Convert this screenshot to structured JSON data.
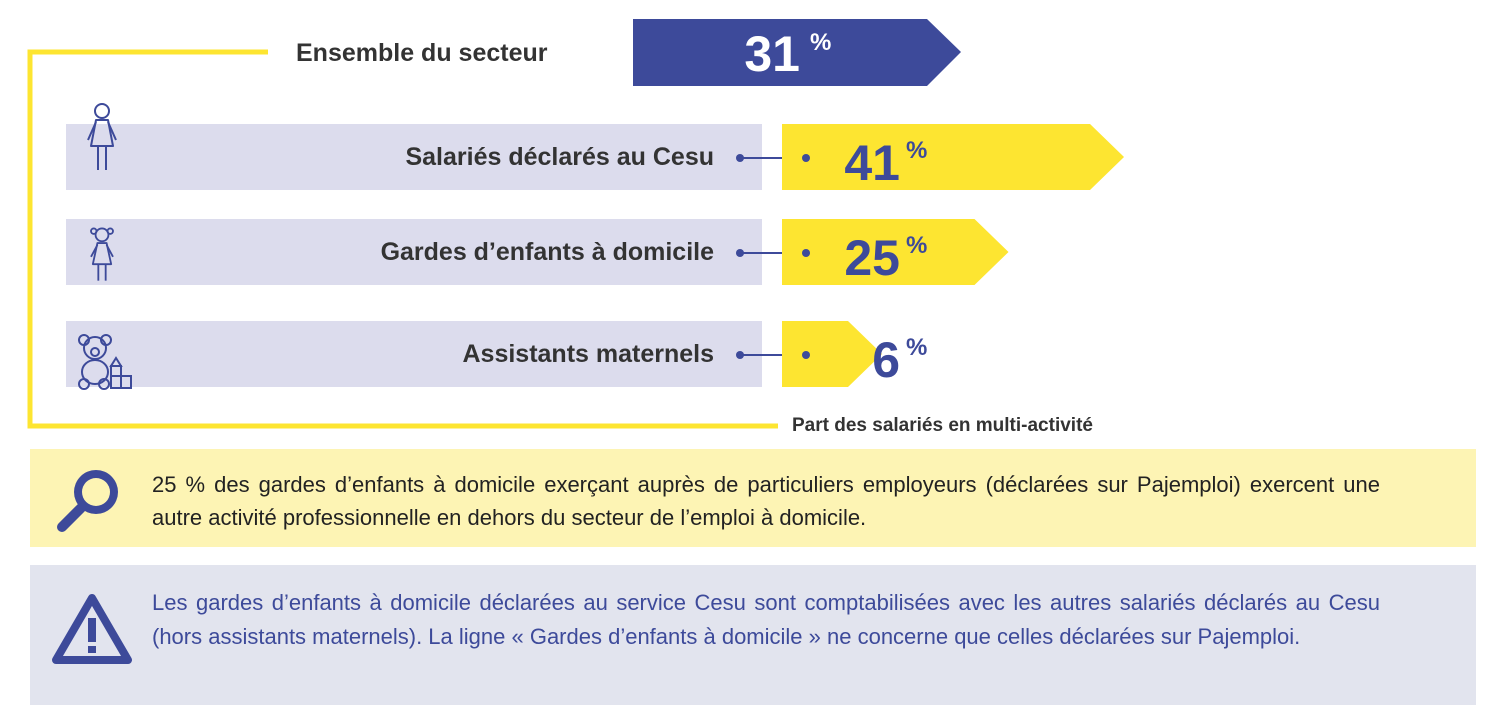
{
  "chart_data": {
    "type": "bar",
    "title": "",
    "total": {
      "label": "Ensemble du secteur",
      "value": 31,
      "unit": "%"
    },
    "categories": [
      "Salariés déclarés au Cesu",
      "Gardes d’enfants à domicile",
      "Assistants maternels"
    ],
    "values": [
      41,
      25,
      6
    ],
    "unit": "%",
    "icons": [
      "woman-icon",
      "child-icon",
      "teddy-bear-toys-icon"
    ],
    "caption": "Part des salariés en multi-activité",
    "colors": {
      "total": "#3d4a9a",
      "category": "#fde531",
      "row_bg": "#dcdced",
      "text": "#3d4a9a"
    }
  },
  "info": {
    "icon": "magnifier-icon",
    "text": "25 % des gardes d’enfants à domicile exerçant auprès de particuliers employeurs (déclarées sur Pajemploi) exercent une autre activité professionnelle en dehors du secteur de l’emploi à domicile."
  },
  "warning": {
    "icon": "warning-triangle-icon",
    "text": "Les gardes d’enfants à domicile déclarées au service Cesu sont comptabilisées avec les autres salariés déclarés au Cesu (hors assistants maternels). La ligne « Gardes d’enfants à domicile » ne concerne que celles déclarées sur Pajemploi."
  }
}
